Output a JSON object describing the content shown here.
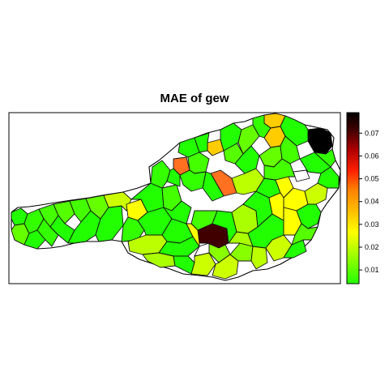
{
  "title": "MAE of gew",
  "legend": {
    "tick_labels": [
      "0.07",
      "0.06",
      "0.05",
      "0.04",
      "0.03",
      "0.02",
      "0.01"
    ],
    "tick_values": [
      0.07,
      0.06,
      0.05,
      0.04,
      0.03,
      0.02,
      0.01
    ],
    "range": [
      0.004,
      0.079
    ],
    "colors": [
      "#22ff00",
      "#aaff00",
      "#ffff00",
      "#ffc000",
      "#ff8000",
      "#ff2000",
      "#b00000",
      "#400000",
      "#000000"
    ],
    "color_stops": [
      0.0,
      0.18,
      0.3,
      0.42,
      0.55,
      0.66,
      0.78,
      0.9,
      1.0
    ]
  },
  "colors": {
    "no_data": "#ffffff",
    "border": "#000000"
  }
}
